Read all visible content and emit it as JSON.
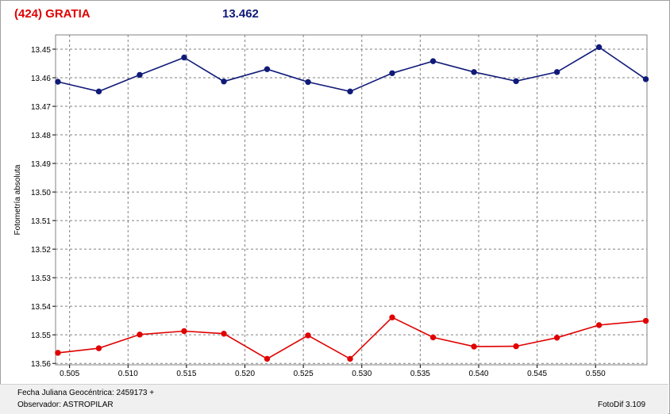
{
  "header": {
    "object_label": "(424) GRATIA",
    "magnitude_label": "13.462",
    "object_color": "#e00000",
    "magnitude_color": "#101a78"
  },
  "footer": {
    "date_label": "Fecha Juliana Geocéntrica: 2459173 +",
    "observer_label": "Observador: ASTROPILAR",
    "software_label": "FotoDif 3.109"
  },
  "chart_data": {
    "type": "line",
    "title": "",
    "xlabel": "",
    "ylabel": "Fotometría absoluta",
    "xlim": [
      0.5038,
      0.5544
    ],
    "ylim": [
      13.445,
      13.5605
    ],
    "y_inverted": true,
    "grid": true,
    "x_ticks": [
      "0.505",
      "0.510",
      "0.515",
      "0.520",
      "0.525",
      "0.530",
      "0.535",
      "0.540",
      "0.545",
      "0.550"
    ],
    "y_ticks": [
      "13.45",
      "13.46",
      "13.47",
      "13.48",
      "13.49",
      "13.50",
      "13.51",
      "13.52",
      "13.53",
      "13.54",
      "13.55",
      "13.56"
    ],
    "series": [
      {
        "color": "#101a78",
        "x": [
          0.504,
          0.5075,
          0.511,
          0.5148,
          0.5182,
          0.5219,
          0.5254,
          0.529,
          0.5326,
          0.5361,
          0.5396,
          0.5432,
          0.5467,
          0.5503,
          0.5543
        ],
        "y": [
          13.4614,
          13.4648,
          13.459,
          13.4529,
          13.4613,
          13.457,
          13.4615,
          13.4648,
          13.4584,
          13.4542,
          13.458,
          13.4612,
          13.458,
          13.4493,
          13.4605
        ]
      },
      {
        "color": "#e00000",
        "x": [
          0.504,
          0.5075,
          0.511,
          0.5148,
          0.5182,
          0.5219,
          0.5254,
          0.529,
          0.5326,
          0.5361,
          0.5396,
          0.5432,
          0.5467,
          0.5503,
          0.5543
        ],
        "y": [
          13.5563,
          13.5547,
          13.5499,
          13.5487,
          13.5496,
          13.5584,
          13.5502,
          13.5584,
          13.5439,
          13.5509,
          13.5541,
          13.554,
          13.551,
          13.5466,
          13.5451
        ]
      }
    ]
  }
}
